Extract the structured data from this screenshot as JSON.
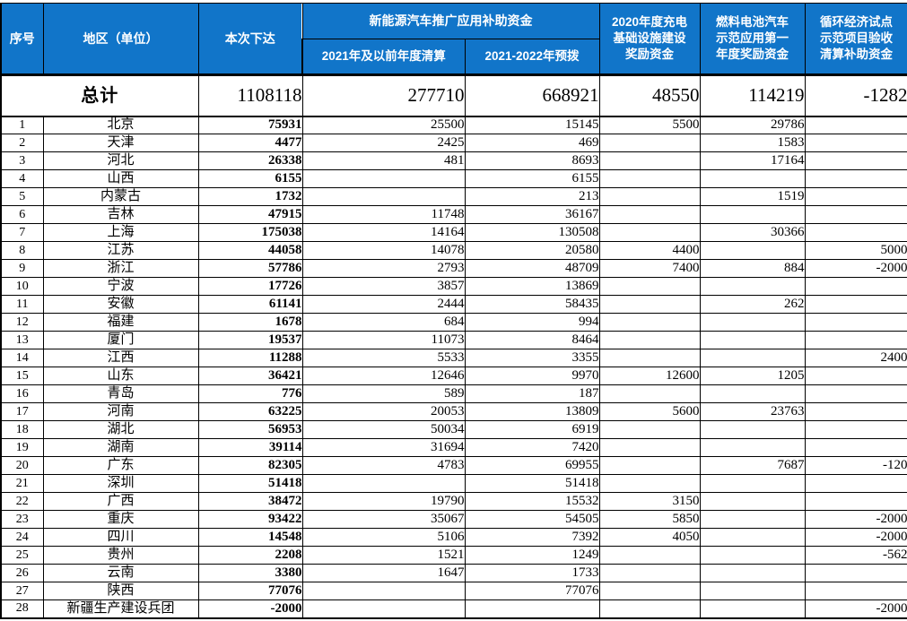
{
  "colors": {
    "header_bg": "#1175C9",
    "header_text": "#FFFFFF",
    "grid_line": "#000000",
    "body_bg": "#FFFFFF"
  },
  "chart_data": {
    "type": "table",
    "header": {
      "serial": "序号",
      "region": "地区（单位）",
      "issued": "本次下达",
      "nev_group": "新能源汽车推广应用补助资金",
      "nev_settlement": "2021年及以前年度清算",
      "nev_prepay": "2021-2022年预拨",
      "charging": "2020年度充电\n基础设施建设\n奖励资金",
      "fuel_cell": "燃料电池汽车\n示范应用第一\n年度奖励资金",
      "circular": "循环经济试点\n示范项目验收\n清算补助资金"
    },
    "total_row": {
      "label": "总计",
      "values": [
        "1108118",
        "277710",
        "668921",
        "48550",
        "114219",
        "-1282"
      ]
    },
    "rows": [
      {
        "no": "1",
        "region": "北京",
        "values": [
          "75931",
          "25500",
          "15145",
          "5500",
          "29786",
          ""
        ]
      },
      {
        "no": "2",
        "region": "天津",
        "values": [
          "4477",
          "2425",
          "469",
          "",
          "1583",
          ""
        ]
      },
      {
        "no": "3",
        "region": "河北",
        "values": [
          "26338",
          "481",
          "8693",
          "",
          "17164",
          ""
        ]
      },
      {
        "no": "4",
        "region": "山西",
        "values": [
          "6155",
          "",
          "6155",
          "",
          "",
          ""
        ]
      },
      {
        "no": "5",
        "region": "内蒙古",
        "values": [
          "1732",
          "",
          "213",
          "",
          "1519",
          ""
        ]
      },
      {
        "no": "6",
        "region": "吉林",
        "values": [
          "47915",
          "11748",
          "36167",
          "",
          "",
          ""
        ]
      },
      {
        "no": "7",
        "region": "上海",
        "values": [
          "175038",
          "14164",
          "130508",
          "",
          "30366",
          ""
        ]
      },
      {
        "no": "8",
        "region": "江苏",
        "values": [
          "44058",
          "14078",
          "20580",
          "4400",
          "",
          "5000"
        ]
      },
      {
        "no": "9",
        "region": "浙江",
        "values": [
          "57786",
          "2793",
          "48709",
          "7400",
          "884",
          "-2000"
        ]
      },
      {
        "no": "10",
        "region": "宁波",
        "values": [
          "17726",
          "3857",
          "13869",
          "",
          "",
          ""
        ]
      },
      {
        "no": "11",
        "region": "安徽",
        "values": [
          "61141",
          "2444",
          "58435",
          "",
          "262",
          ""
        ]
      },
      {
        "no": "12",
        "region": "福建",
        "values": [
          "1678",
          "684",
          "994",
          "",
          "",
          ""
        ]
      },
      {
        "no": "13",
        "region": "厦门",
        "values": [
          "19537",
          "11073",
          "8464",
          "",
          "",
          ""
        ]
      },
      {
        "no": "14",
        "region": "江西",
        "values": [
          "11288",
          "5533",
          "3355",
          "",
          "",
          "2400"
        ]
      },
      {
        "no": "15",
        "region": "山东",
        "values": [
          "36421",
          "12646",
          "9970",
          "12600",
          "1205",
          ""
        ]
      },
      {
        "no": "16",
        "region": "青岛",
        "values": [
          "776",
          "589",
          "187",
          "",
          "",
          ""
        ]
      },
      {
        "no": "17",
        "region": "河南",
        "values": [
          "63225",
          "20053",
          "13809",
          "5600",
          "23763",
          ""
        ]
      },
      {
        "no": "18",
        "region": "湖北",
        "values": [
          "56953",
          "50034",
          "6919",
          "",
          "",
          ""
        ]
      },
      {
        "no": "19",
        "region": "湖南",
        "values": [
          "39114",
          "31694",
          "7420",
          "",
          "",
          ""
        ]
      },
      {
        "no": "20",
        "region": "广东",
        "values": [
          "82305",
          "4783",
          "69955",
          "",
          "7687",
          "-120"
        ]
      },
      {
        "no": "21",
        "region": "深圳",
        "values": [
          "51418",
          "",
          "51418",
          "",
          "",
          ""
        ]
      },
      {
        "no": "22",
        "region": "广西",
        "values": [
          "38472",
          "19790",
          "15532",
          "3150",
          "",
          ""
        ]
      },
      {
        "no": "23",
        "region": "重庆",
        "values": [
          "93422",
          "35067",
          "54505",
          "5850",
          "",
          "-2000"
        ]
      },
      {
        "no": "24",
        "region": "四川",
        "values": [
          "14548",
          "5106",
          "7392",
          "4050",
          "",
          "-2000"
        ]
      },
      {
        "no": "25",
        "region": "贵州",
        "values": [
          "2208",
          "1521",
          "1249",
          "",
          "",
          "-562"
        ]
      },
      {
        "no": "26",
        "region": "云南",
        "values": [
          "3380",
          "1647",
          "1733",
          "",
          "",
          ""
        ]
      },
      {
        "no": "27",
        "region": "陕西",
        "values": [
          "77076",
          "",
          "77076",
          "",
          "",
          ""
        ]
      },
      {
        "no": "28",
        "region": "新疆生产建设兵团",
        "values": [
          "-2000",
          "",
          "",
          "",
          "",
          "-2000"
        ]
      }
    ]
  }
}
